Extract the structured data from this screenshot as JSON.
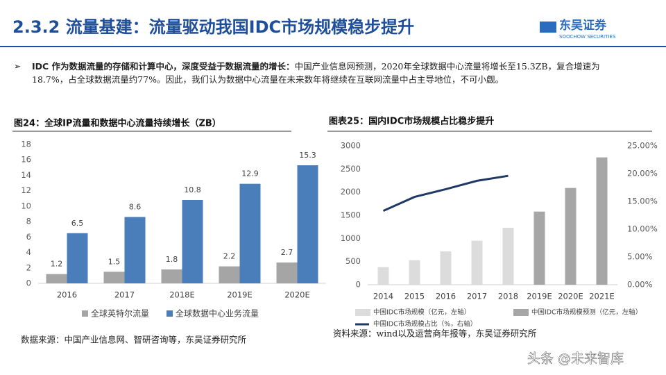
{
  "header": {
    "title": "2.3.2 流量基建：流量驱动我国IDC市场规模稳步提升",
    "logo": "东吴证券",
    "logo_sub": "SOOCHOW SECURITIES"
  },
  "bullet": {
    "bold": "IDC 作为数据流量的存储和计算中心，深度受益于数据流量的增长：",
    "text": "中国产业信息网预测，2020年全球数据中心流量将增长至15.3ZB，复合增速为18.7%，占全球数据流量约77%。因此，我们认为数据中心流量在未来数年将继续在互联网流量中占主导地位，不可小觑。"
  },
  "watermark": "头条 @未来智库",
  "chart_data": [
    {
      "type": "bar",
      "title": "图24：全球IP流量和数据中心流量持续增长（ZB）",
      "source": "数据来源：中国产业信息网、智研咨询等，东吴证券研究所",
      "categories": [
        "2016",
        "2017",
        "2018E",
        "2019E",
        "2020E"
      ],
      "series": [
        {
          "name": "全球英特尔流量",
          "color": "#a5a5a5",
          "values": [
            1.2,
            1.5,
            1.8,
            2.2,
            2.7
          ]
        },
        {
          "name": "全球数据中心业务流量",
          "color": "#4a7ebb",
          "values": [
            6.5,
            8.6,
            10.8,
            12.9,
            15.3
          ]
        }
      ],
      "ylim": [
        0,
        18
      ],
      "yticks": [
        0,
        2,
        4,
        6,
        8,
        10,
        12,
        14,
        16,
        18
      ],
      "data_labels": true
    },
    {
      "type": "bar",
      "title": "图表25：国内IDC市场规模占比稳步提升",
      "source": "资料来源：wind以及运营商年报等，东吴证券研究所",
      "categories": [
        "2014",
        "2015",
        "2016",
        "2017",
        "2018",
        "2019E",
        "2020E",
        "2021E"
      ],
      "series": [
        {
          "name": "中国IDC市场规模（亿元，左轴）",
          "color": "#dcdcdc",
          "values": [
            380,
            530,
            720,
            950,
            1230,
            null,
            null,
            null
          ]
        },
        {
          "name": "中国IDC市场规模预测（亿元，左轴）",
          "color": "#a6a6a6",
          "values": [
            null,
            null,
            null,
            null,
            null,
            1580,
            2090,
            2750
          ]
        },
        {
          "name": "中国IDC市场规模占比（%，右轴）",
          "color": "#1f3864",
          "type": "line",
          "axis": "y2",
          "values": [
            13.3,
            15.8,
            17.2,
            18.7,
            19.6,
            null,
            null,
            null
          ]
        }
      ],
      "ylim": [
        0,
        3000
      ],
      "yticks": [
        0,
        500,
        1000,
        1500,
        2000,
        2500,
        3000
      ],
      "y2lim": [
        0,
        25
      ],
      "y2ticks": [
        {
          "value": 0,
          "label": "0.00%"
        },
        {
          "value": 5,
          "label": "5.00%"
        },
        {
          "value": 10,
          "label": "10.00%"
        },
        {
          "value": 15,
          "label": "15.00%"
        },
        {
          "value": 20,
          "label": "20.00%"
        },
        {
          "value": 25,
          "label": "25.00%"
        }
      ],
      "data_labels": false
    }
  ]
}
